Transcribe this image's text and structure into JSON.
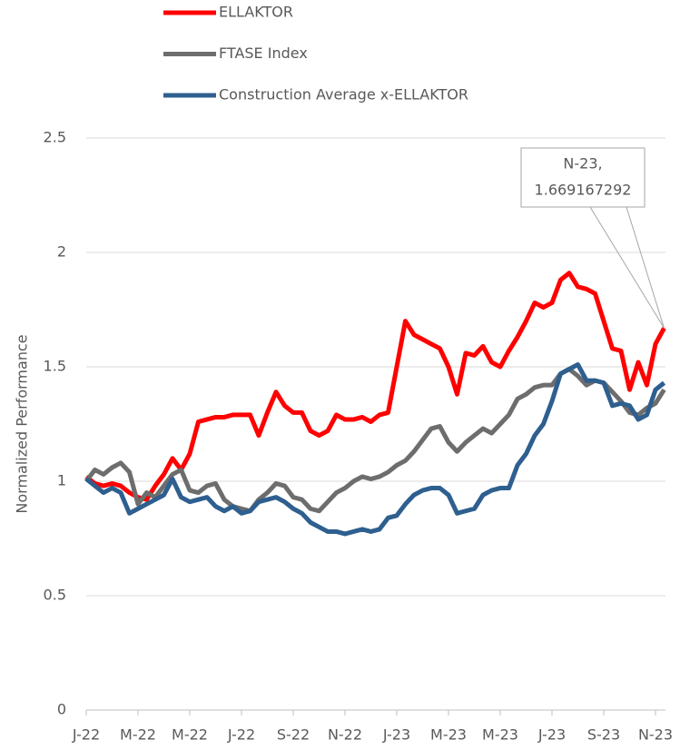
{
  "chart_data": {
    "type": "line",
    "y_label": "Normalized Performance",
    "categories": [
      "J-22",
      null,
      null,
      null,
      null,
      null,
      "M-22",
      null,
      null,
      null,
      null,
      null,
      "M-22",
      null,
      null,
      null,
      null,
      null,
      "J-22",
      null,
      null,
      null,
      null,
      null,
      "S-22",
      null,
      null,
      null,
      null,
      null,
      "N-22",
      null,
      null,
      null,
      null,
      null,
      "J-23",
      null,
      null,
      null,
      null,
      null,
      "M-23",
      null,
      null,
      null,
      null,
      null,
      "M-23",
      null,
      null,
      null,
      null,
      null,
      "J-23",
      null,
      null,
      null,
      null,
      null,
      "S-23",
      null,
      null,
      null,
      null,
      null,
      "N-23",
      null
    ],
    "series": [
      {
        "name": "ELLAKTOR",
        "color": "#ff0000",
        "values": [
          1.02,
          0.99,
          0.98,
          0.99,
          0.98,
          0.95,
          0.93,
          0.92,
          0.98,
          1.03,
          1.1,
          1.05,
          1.12,
          1.26,
          1.27,
          1.28,
          1.28,
          1.29,
          1.29,
          1.29,
          1.2,
          1.3,
          1.39,
          1.33,
          1.3,
          1.3,
          1.22,
          1.2,
          1.22,
          1.29,
          1.27,
          1.27,
          1.28,
          1.26,
          1.29,
          1.3,
          1.5,
          1.7,
          1.64,
          1.62,
          1.6,
          1.58,
          1.5,
          1.38,
          1.56,
          1.55,
          1.59,
          1.52,
          1.5,
          1.57,
          1.63,
          1.7,
          1.78,
          1.76,
          1.78,
          1.88,
          1.91,
          1.85,
          1.84,
          1.82,
          1.7,
          1.58,
          1.57,
          1.4,
          1.52,
          1.42,
          1.6,
          1.669167292
        ]
      },
      {
        "name": "FTASE Index",
        "color": "#6d6d6d",
        "values": [
          1.0,
          1.05,
          1.03,
          1.06,
          1.08,
          1.04,
          0.9,
          0.95,
          0.93,
          0.98,
          1.03,
          1.05,
          0.96,
          0.95,
          0.98,
          0.99,
          0.92,
          0.89,
          0.88,
          0.87,
          0.92,
          0.95,
          0.99,
          0.98,
          0.93,
          0.92,
          0.88,
          0.87,
          0.91,
          0.95,
          0.97,
          1.0,
          1.02,
          1.01,
          1.02,
          1.04,
          1.07,
          1.09,
          1.13,
          1.18,
          1.23,
          1.24,
          1.17,
          1.13,
          1.17,
          1.2,
          1.23,
          1.21,
          1.25,
          1.29,
          1.36,
          1.38,
          1.41,
          1.42,
          1.42,
          1.47,
          1.49,
          1.46,
          1.42,
          1.44,
          1.43,
          1.39,
          1.35,
          1.3,
          1.29,
          1.32,
          1.34,
          1.4
        ]
      },
      {
        "name": "Construction Average x-ELLAKTOR",
        "color": "#2e5f8f",
        "values": [
          1.01,
          0.98,
          0.95,
          0.97,
          0.95,
          0.86,
          0.88,
          0.9,
          0.92,
          0.94,
          1.01,
          0.93,
          0.91,
          0.92,
          0.93,
          0.89,
          0.87,
          0.89,
          0.86,
          0.87,
          0.91,
          0.92,
          0.93,
          0.91,
          0.88,
          0.86,
          0.82,
          0.8,
          0.78,
          0.78,
          0.77,
          0.78,
          0.79,
          0.78,
          0.79,
          0.84,
          0.85,
          0.9,
          0.94,
          0.96,
          0.97,
          0.97,
          0.94,
          0.86,
          0.87,
          0.88,
          0.94,
          0.96,
          0.97,
          0.97,
          1.07,
          1.12,
          1.2,
          1.25,
          1.35,
          1.47,
          1.49,
          1.51,
          1.44,
          1.44,
          1.43,
          1.33,
          1.34,
          1.33,
          1.27,
          1.29,
          1.4,
          1.43
        ]
      }
    ],
    "ylim": [
      0,
      2.5
    ],
    "yticks": [
      0,
      0.5,
      1,
      1.5,
      2,
      2.5
    ],
    "grid": true,
    "legend": "top",
    "annotation": {
      "lines": [
        "N-23,",
        "1.669167292"
      ],
      "series": 0,
      "index": 67
    }
  }
}
